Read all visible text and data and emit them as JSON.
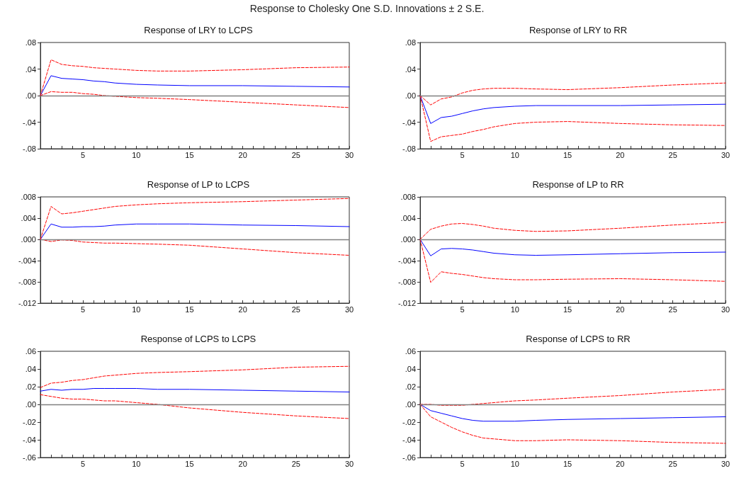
{
  "chart_data": [
    {
      "type": "line",
      "title": "Response of LRY to LCPS",
      "annotations": [
        "Response to Cholesky One S.D. Innovations ± 2 S.E."
      ],
      "x": [
        1,
        2,
        3,
        4,
        5,
        6,
        7,
        8,
        10,
        12,
        15,
        20,
        25,
        30
      ],
      "series": [
        {
          "color": "#0000ff",
          "line_style": "solid",
          "values": [
            0,
            0.03,
            0.026,
            0.025,
            0.024,
            0.022,
            0.021,
            0.019,
            0.017,
            0.016,
            0.015,
            0.015,
            0.014,
            0.013
          ]
        },
        {
          "color": "#ff0000",
          "line_style": "dashed",
          "values": [
            0,
            0.054,
            0.047,
            0.045,
            0.044,
            0.042,
            0.041,
            0.04,
            0.038,
            0.037,
            0.037,
            0.039,
            0.042,
            0.043
          ]
        },
        {
          "color": "#ff0000",
          "line_style": "dashed",
          "values": [
            0,
            0.006,
            0.005,
            0.005,
            0.003,
            0.002,
            0.0,
            -0.001,
            -0.003,
            -0.004,
            -0.006,
            -0.01,
            -0.014,
            -0.018
          ]
        }
      ],
      "xlim": [
        1,
        30
      ],
      "xticks": [
        {
          "value": 2,
          "label": null
        },
        {
          "value": 3,
          "label": null
        },
        {
          "value": 4,
          "label": null
        },
        5,
        {
          "value": 6,
          "label": null
        },
        {
          "value": 7,
          "label": null
        },
        {
          "value": 8,
          "label": null
        },
        {
          "value": 9,
          "label": null
        },
        10,
        {
          "value": 11,
          "label": null
        },
        {
          "value": 12,
          "label": null
        },
        {
          "value": 13,
          "label": null
        },
        {
          "value": 14,
          "label": null
        },
        15,
        {
          "value": 16,
          "label": null
        },
        {
          "value": 17,
          "label": null
        },
        {
          "value": 18,
          "label": null
        },
        {
          "value": 19,
          "label": null
        },
        20,
        {
          "value": 21,
          "label": null
        },
        {
          "value": 22,
          "label": null
        },
        {
          "value": 23,
          "label": null
        },
        {
          "value": 24,
          "label": null
        },
        25,
        {
          "value": 26,
          "label": null
        },
        {
          "value": 27,
          "label": null
        },
        {
          "value": 28,
          "label": null
        },
        {
          "value": 29,
          "label": null
        },
        30
      ],
      "ylim": [
        -0.08,
        0.08
      ],
      "yticks": [
        {
          "value": -0.08,
          "label": "-.08"
        },
        {
          "value": -0.04,
          "label": "-.04"
        },
        {
          "value": 0,
          "label": ".00"
        },
        {
          "value": 0.04,
          "label": ".04"
        },
        {
          "value": 0.08,
          "label": ".08"
        }
      ],
      "ref_lines": [
        {
          "axis": "y",
          "value": 0,
          "color": "#808080"
        }
      ],
      "grid": false,
      "marker": "none"
    },
    {
      "type": "line",
      "title": "Response of LRY to RR",
      "x": [
        1,
        2,
        3,
        4,
        5,
        6,
        7,
        8,
        10,
        12,
        15,
        20,
        25,
        30
      ],
      "series": [
        {
          "color": "#0000ff",
          "line_style": "solid",
          "values": [
            0,
            -0.042,
            -0.033,
            -0.031,
            -0.027,
            -0.023,
            -0.02,
            -0.018,
            -0.016,
            -0.015,
            -0.015,
            -0.015,
            -0.014,
            -0.013
          ]
        },
        {
          "color": "#ff0000",
          "line_style": "dashed",
          "values": [
            0,
            -0.014,
            -0.005,
            -0.002,
            0.004,
            0.008,
            0.01,
            0.011,
            0.011,
            0.01,
            0.009,
            0.012,
            0.016,
            0.019
          ]
        },
        {
          "color": "#ff0000",
          "line_style": "dashed",
          "values": [
            0,
            -0.069,
            -0.062,
            -0.06,
            -0.058,
            -0.054,
            -0.051,
            -0.047,
            -0.042,
            -0.04,
            -0.039,
            -0.042,
            -0.044,
            -0.045
          ]
        }
      ],
      "xlim": [
        1,
        30
      ],
      "xticks": [
        {
          "value": 2,
          "label": null
        },
        {
          "value": 3,
          "label": null
        },
        {
          "value": 4,
          "label": null
        },
        5,
        {
          "value": 6,
          "label": null
        },
        {
          "value": 7,
          "label": null
        },
        {
          "value": 8,
          "label": null
        },
        {
          "value": 9,
          "label": null
        },
        10,
        {
          "value": 11,
          "label": null
        },
        {
          "value": 12,
          "label": null
        },
        {
          "value": 13,
          "label": null
        },
        {
          "value": 14,
          "label": null
        },
        15,
        {
          "value": 16,
          "label": null
        },
        {
          "value": 17,
          "label": null
        },
        {
          "value": 18,
          "label": null
        },
        {
          "value": 19,
          "label": null
        },
        20,
        {
          "value": 21,
          "label": null
        },
        {
          "value": 22,
          "label": null
        },
        {
          "value": 23,
          "label": null
        },
        {
          "value": 24,
          "label": null
        },
        25,
        {
          "value": 26,
          "label": null
        },
        {
          "value": 27,
          "label": null
        },
        {
          "value": 28,
          "label": null
        },
        {
          "value": 29,
          "label": null
        },
        30
      ],
      "ylim": [
        -0.08,
        0.08
      ],
      "yticks": [
        {
          "value": -0.08,
          "label": "-.08"
        },
        {
          "value": -0.04,
          "label": "-.04"
        },
        {
          "value": 0,
          "label": ".00"
        },
        {
          "value": 0.04,
          "label": ".04"
        },
        {
          "value": 0.08,
          "label": ".08"
        }
      ],
      "ref_lines": [
        {
          "axis": "y",
          "value": 0,
          "color": "#808080"
        }
      ],
      "grid": false,
      "marker": "none"
    },
    {
      "type": "line",
      "title": "Response of LP to LCPS",
      "x": [
        1,
        2,
        3,
        4,
        5,
        6,
        7,
        8,
        10,
        12,
        15,
        20,
        25,
        30
      ],
      "series": [
        {
          "color": "#0000ff",
          "line_style": "solid",
          "values": [
            0,
            0.0029,
            0.0023,
            0.0023,
            0.0024,
            0.0024,
            0.0025,
            0.0027,
            0.0029,
            0.0029,
            0.0029,
            0.0027,
            0.0026,
            0.0024
          ]
        },
        {
          "color": "#ff0000",
          "line_style": "dashed",
          "values": [
            0,
            0.0062,
            0.0048,
            0.005,
            0.0053,
            0.0056,
            0.0059,
            0.0062,
            0.0065,
            0.0067,
            0.0069,
            0.0071,
            0.0074,
            0.0077
          ]
        },
        {
          "color": "#ff0000",
          "line_style": "dashed",
          "values": [
            0,
            -0.0004,
            -0.0001,
            -0.0002,
            -0.0005,
            -0.0006,
            -0.0007,
            -0.0007,
            -0.0008,
            -0.0009,
            -0.0011,
            -0.0018,
            -0.0025,
            -0.003
          ]
        }
      ],
      "xlim": [
        1,
        30
      ],
      "xticks": [
        {
          "value": 2,
          "label": null
        },
        {
          "value": 3,
          "label": null
        },
        {
          "value": 4,
          "label": null
        },
        5,
        {
          "value": 6,
          "label": null
        },
        {
          "value": 7,
          "label": null
        },
        {
          "value": 8,
          "label": null
        },
        {
          "value": 9,
          "label": null
        },
        10,
        {
          "value": 11,
          "label": null
        },
        {
          "value": 12,
          "label": null
        },
        {
          "value": 13,
          "label": null
        },
        {
          "value": 14,
          "label": null
        },
        15,
        {
          "value": 16,
          "label": null
        },
        {
          "value": 17,
          "label": null
        },
        {
          "value": 18,
          "label": null
        },
        {
          "value": 19,
          "label": null
        },
        20,
        {
          "value": 21,
          "label": null
        },
        {
          "value": 22,
          "label": null
        },
        {
          "value": 23,
          "label": null
        },
        {
          "value": 24,
          "label": null
        },
        25,
        {
          "value": 26,
          "label": null
        },
        {
          "value": 27,
          "label": null
        },
        {
          "value": 28,
          "label": null
        },
        {
          "value": 29,
          "label": null
        },
        30
      ],
      "ylim": [
        -0.012,
        0.008
      ],
      "yticks": [
        {
          "value": -0.012,
          "label": "-.012"
        },
        {
          "value": -0.008,
          "label": "-.008"
        },
        {
          "value": -0.004,
          "label": "-.004"
        },
        {
          "value": 0,
          "label": ".000"
        },
        {
          "value": 0.004,
          "label": ".004"
        },
        {
          "value": 0.008,
          "label": ".008"
        }
      ],
      "ref_lines": [
        {
          "axis": "y",
          "value": 0,
          "color": "#808080"
        }
      ],
      "grid": false,
      "marker": "none"
    },
    {
      "type": "line",
      "title": "Response of LP to RR",
      "x": [
        1,
        2,
        3,
        4,
        5,
        6,
        7,
        8,
        10,
        12,
        15,
        20,
        25,
        30
      ],
      "series": [
        {
          "color": "#0000ff",
          "line_style": "solid",
          "values": [
            0,
            -0.0031,
            -0.0018,
            -0.0017,
            -0.0018,
            -0.002,
            -0.0023,
            -0.0026,
            -0.0029,
            -0.003,
            -0.0029,
            -0.0027,
            -0.0025,
            -0.0024
          ]
        },
        {
          "color": "#ff0000",
          "line_style": "dashed",
          "values": [
            0,
            0.0019,
            0.0025,
            0.0029,
            0.003,
            0.0028,
            0.0025,
            0.0021,
            0.0017,
            0.0015,
            0.0016,
            0.0021,
            0.0027,
            0.0032
          ]
        },
        {
          "color": "#ff0000",
          "line_style": "dashed",
          "values": [
            0,
            -0.0081,
            -0.0061,
            -0.0064,
            -0.0066,
            -0.0069,
            -0.0072,
            -0.0074,
            -0.0076,
            -0.0076,
            -0.0075,
            -0.0074,
            -0.0076,
            -0.0079
          ]
        }
      ],
      "xlim": [
        1,
        30
      ],
      "xticks": [
        {
          "value": 2,
          "label": null
        },
        {
          "value": 3,
          "label": null
        },
        {
          "value": 4,
          "label": null
        },
        5,
        {
          "value": 6,
          "label": null
        },
        {
          "value": 7,
          "label": null
        },
        {
          "value": 8,
          "label": null
        },
        {
          "value": 9,
          "label": null
        },
        10,
        {
          "value": 11,
          "label": null
        },
        {
          "value": 12,
          "label": null
        },
        {
          "value": 13,
          "label": null
        },
        {
          "value": 14,
          "label": null
        },
        15,
        {
          "value": 16,
          "label": null
        },
        {
          "value": 17,
          "label": null
        },
        {
          "value": 18,
          "label": null
        },
        {
          "value": 19,
          "label": null
        },
        20,
        {
          "value": 21,
          "label": null
        },
        {
          "value": 22,
          "label": null
        },
        {
          "value": 23,
          "label": null
        },
        {
          "value": 24,
          "label": null
        },
        25,
        {
          "value": 26,
          "label": null
        },
        {
          "value": 27,
          "label": null
        },
        {
          "value": 28,
          "label": null
        },
        {
          "value": 29,
          "label": null
        },
        30
      ],
      "ylim": [
        -0.012,
        0.008
      ],
      "yticks": [
        {
          "value": -0.012,
          "label": "-.012"
        },
        {
          "value": -0.008,
          "label": "-.008"
        },
        {
          "value": -0.004,
          "label": "-.004"
        },
        {
          "value": 0,
          "label": ".000"
        },
        {
          "value": 0.004,
          "label": ".004"
        },
        {
          "value": 0.008,
          "label": ".008"
        }
      ],
      "ref_lines": [
        {
          "axis": "y",
          "value": 0,
          "color": "#808080"
        }
      ],
      "grid": false,
      "marker": "none"
    },
    {
      "type": "line",
      "title": "Response of LCPS to LCPS",
      "x": [
        1,
        2,
        3,
        4,
        5,
        6,
        7,
        8,
        10,
        12,
        15,
        20,
        25,
        30
      ],
      "series": [
        {
          "color": "#0000ff",
          "line_style": "solid",
          "values": [
            0.015,
            0.017,
            0.016,
            0.017,
            0.017,
            0.018,
            0.018,
            0.018,
            0.018,
            0.017,
            0.017,
            0.016,
            0.015,
            0.014
          ]
        },
        {
          "color": "#ff0000",
          "line_style": "dashed",
          "values": [
            0.019,
            0.024,
            0.025,
            0.027,
            0.028,
            0.03,
            0.032,
            0.033,
            0.035,
            0.036,
            0.037,
            0.039,
            0.042,
            0.043
          ]
        },
        {
          "color": "#ff0000",
          "line_style": "dashed",
          "values": [
            0.011,
            0.009,
            0.007,
            0.006,
            0.006,
            0.005,
            0.004,
            0.004,
            0.002,
            0.0,
            -0.004,
            -0.009,
            -0.013,
            -0.016
          ]
        }
      ],
      "xlim": [
        1,
        30
      ],
      "xticks": [
        {
          "value": 2,
          "label": null
        },
        {
          "value": 3,
          "label": null
        },
        {
          "value": 4,
          "label": null
        },
        5,
        {
          "value": 6,
          "label": null
        },
        {
          "value": 7,
          "label": null
        },
        {
          "value": 8,
          "label": null
        },
        {
          "value": 9,
          "label": null
        },
        10,
        {
          "value": 11,
          "label": null
        },
        {
          "value": 12,
          "label": null
        },
        {
          "value": 13,
          "label": null
        },
        {
          "value": 14,
          "label": null
        },
        15,
        {
          "value": 16,
          "label": null
        },
        {
          "value": 17,
          "label": null
        },
        {
          "value": 18,
          "label": null
        },
        {
          "value": 19,
          "label": null
        },
        20,
        {
          "value": 21,
          "label": null
        },
        {
          "value": 22,
          "label": null
        },
        {
          "value": 23,
          "label": null
        },
        {
          "value": 24,
          "label": null
        },
        25,
        {
          "value": 26,
          "label": null
        },
        {
          "value": 27,
          "label": null
        },
        {
          "value": 28,
          "label": null
        },
        {
          "value": 29,
          "label": null
        },
        30
      ],
      "ylim": [
        -0.06,
        0.06
      ],
      "yticks": [
        {
          "value": -0.06,
          "label": "-.06"
        },
        {
          "value": -0.04,
          "label": "-.04"
        },
        {
          "value": -0.02,
          "label": "-.02"
        },
        {
          "value": 0,
          "label": ".00"
        },
        {
          "value": 0.02,
          "label": ".02"
        },
        {
          "value": 0.04,
          "label": ".04"
        },
        {
          "value": 0.06,
          "label": ".06"
        }
      ],
      "ref_lines": [
        {
          "axis": "y",
          "value": 0,
          "color": "#808080"
        }
      ],
      "grid": false,
      "marker": "none"
    },
    {
      "type": "line",
      "title": "Response of LCPS to RR",
      "x": [
        1,
        2,
        3,
        4,
        5,
        6,
        7,
        8,
        10,
        12,
        15,
        20,
        25,
        30
      ],
      "series": [
        {
          "color": "#0000ff",
          "line_style": "solid",
          "values": [
            0,
            -0.007,
            -0.01,
            -0.013,
            -0.016,
            -0.018,
            -0.019,
            -0.019,
            -0.019,
            -0.018,
            -0.017,
            -0.016,
            -0.015,
            -0.014
          ]
        },
        {
          "color": "#ff0000",
          "line_style": "dashed",
          "values": [
            0,
            0.0,
            -0.001,
            -0.001,
            -0.001,
            0.0,
            0.001,
            0.002,
            0.004,
            0.005,
            0.007,
            0.01,
            0.014,
            0.017
          ]
        },
        {
          "color": "#ff0000",
          "line_style": "dashed",
          "values": [
            0,
            -0.014,
            -0.02,
            -0.026,
            -0.031,
            -0.035,
            -0.038,
            -0.039,
            -0.041,
            -0.041,
            -0.04,
            -0.041,
            -0.043,
            -0.044
          ]
        }
      ],
      "xlim": [
        1,
        30
      ],
      "xticks": [
        {
          "value": 2,
          "label": null
        },
        {
          "value": 3,
          "label": null
        },
        {
          "value": 4,
          "label": null
        },
        5,
        {
          "value": 6,
          "label": null
        },
        {
          "value": 7,
          "label": null
        },
        {
          "value": 8,
          "label": null
        },
        {
          "value": 9,
          "label": null
        },
        10,
        {
          "value": 11,
          "label": null
        },
        {
          "value": 12,
          "label": null
        },
        {
          "value": 13,
          "label": null
        },
        {
          "value": 14,
          "label": null
        },
        15,
        {
          "value": 16,
          "label": null
        },
        {
          "value": 17,
          "label": null
        },
        {
          "value": 18,
          "label": null
        },
        {
          "value": 19,
          "label": null
        },
        20,
        {
          "value": 21,
          "label": null
        },
        {
          "value": 22,
          "label": null
        },
        {
          "value": 23,
          "label": null
        },
        {
          "value": 24,
          "label": null
        },
        25,
        {
          "value": 26,
          "label": null
        },
        {
          "value": 27,
          "label": null
        },
        {
          "value": 28,
          "label": null
        },
        {
          "value": 29,
          "label": null
        },
        30
      ],
      "ylim": [
        -0.06,
        0.06
      ],
      "yticks": [
        {
          "value": -0.06,
          "label": "-.06"
        },
        {
          "value": -0.04,
          "label": "-.04"
        },
        {
          "value": -0.02,
          "label": "-.02"
        },
        {
          "value": 0,
          "label": ".00"
        },
        {
          "value": 0.02,
          "label": ".02"
        },
        {
          "value": 0.04,
          "label": ".04"
        },
        {
          "value": 0.06,
          "label": ".06"
        }
      ],
      "ref_lines": [
        {
          "axis": "y",
          "value": 0,
          "color": "#808080"
        }
      ],
      "grid": false,
      "marker": "none"
    }
  ]
}
